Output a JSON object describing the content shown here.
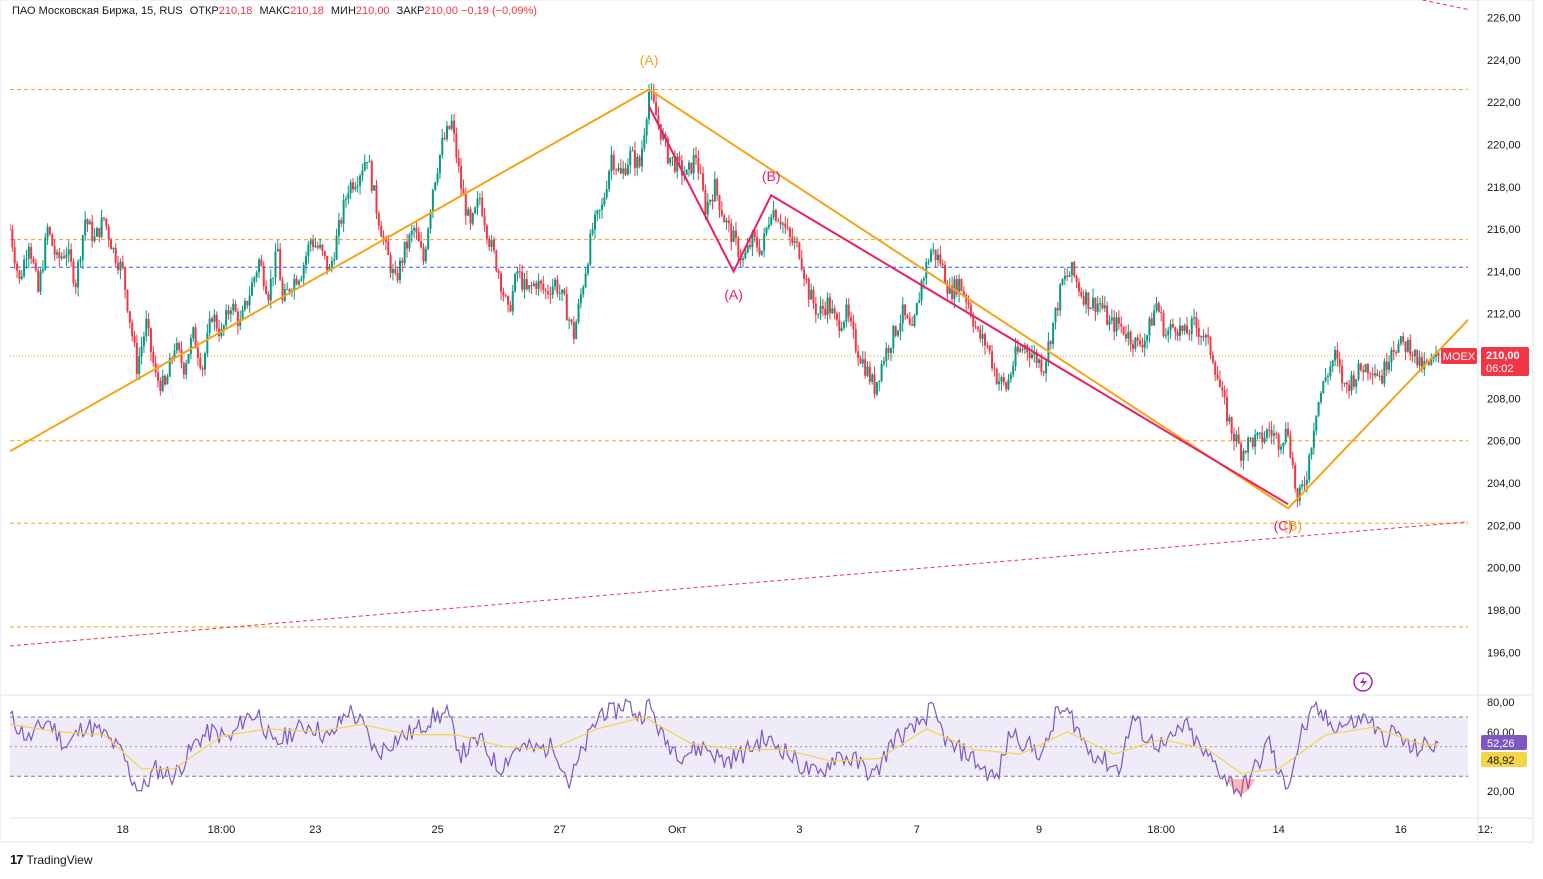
{
  "header": {
    "symbol": "ПАО Московская Биржа, 15, RUS",
    "open_label": "ОТКР",
    "open": "210,18",
    "high_label": "МАКС",
    "high": "210,18",
    "low_label": "МИН",
    "low": "210,00",
    "close_label": "ЗАКР",
    "close": "210,00",
    "change": "−0,19 (−0,09%)"
  },
  "footer": {
    "logo": "17",
    "brand": "TradingView"
  },
  "colors": {
    "up": "#089981",
    "down": "#f23645",
    "wave_orange": "#f5a31a",
    "wave_pink": "#e91e63",
    "trend_red": "#f23645",
    "rsi": "#7e57c2",
    "rsi_ma": "#f5d547"
  },
  "chart_data": [
    {
      "type": "candlestick",
      "title": "ПАО Московская Биржа, 15, RUS",
      "ylim": [
        194,
        227
      ],
      "y_ticks": [
        "226,00",
        "224,00",
        "222,00",
        "220,00",
        "218,00",
        "216,00",
        "214,00",
        "212,00",
        "210,00",
        "208,00",
        "206,00",
        "204,00",
        "202,00",
        "200,00",
        "198,00",
        "196,00"
      ],
      "y_tick_values": [
        226,
        224,
        222,
        220,
        218,
        216,
        214,
        212,
        210,
        208,
        206,
        204,
        202,
        200,
        198,
        196
      ],
      "x_ticks": [
        "18",
        "18:00",
        "23",
        "25",
        "27",
        "Окт",
        "3",
        "7",
        "9",
        "18:00",
        "14",
        "16",
        "12:"
      ],
      "price_path": [
        [
          0,
          216.0
        ],
        [
          2,
          213.5
        ],
        [
          4,
          215.5
        ],
        [
          6,
          213.0
        ],
        [
          8,
          216.0
        ],
        [
          10,
          214.5
        ],
        [
          12,
          215.0
        ],
        [
          14,
          213.5
        ],
        [
          16,
          216.5
        ],
        [
          18,
          215.5
        ],
        [
          20,
          216.5
        ],
        [
          22,
          215.0
        ],
        [
          24,
          214.0
        ],
        [
          26,
          211.0
        ],
        [
          27,
          209.5
        ],
        [
          29,
          211.5
        ],
        [
          31,
          209.0
        ],
        [
          33,
          208.5
        ],
        [
          35,
          210.5
        ],
        [
          37,
          209.5
        ],
        [
          39,
          211.0
        ],
        [
          41,
          209.5
        ],
        [
          43,
          212.0
        ],
        [
          45,
          211.0
        ],
        [
          47,
          212.5
        ],
        [
          49,
          211.5
        ],
        [
          51,
          213.0
        ],
        [
          53,
          214.5
        ],
        [
          55,
          213.0
        ],
        [
          57,
          215.0
        ],
        [
          58,
          212.5
        ],
        [
          60,
          213.5
        ],
        [
          62,
          214.0
        ],
        [
          64,
          215.5
        ],
        [
          66,
          215.0
        ],
        [
          68,
          214.0
        ],
        [
          70,
          216.0
        ],
        [
          72,
          218.0
        ],
        [
          74,
          218.5
        ],
        [
          76,
          219.5
        ],
        [
          78,
          217.0
        ],
        [
          80,
          215.0
        ],
        [
          82,
          213.5
        ],
        [
          84,
          215.0
        ],
        [
          86,
          216.0
        ],
        [
          88,
          214.5
        ],
        [
          90,
          218.0
        ],
        [
          92,
          220.0
        ],
        [
          94,
          221.0
        ],
        [
          96,
          218.0
        ],
        [
          98,
          216.0
        ],
        [
          100,
          217.5
        ],
        [
          102,
          215.5
        ],
        [
          104,
          214.0
        ],
        [
          106,
          212.0
        ],
        [
          108,
          214.0
        ],
        [
          110,
          213.0
        ],
        [
          112,
          213.5
        ],
        [
          114,
          213.0
        ],
        [
          116,
          213.5
        ],
        [
          118,
          212.5
        ],
        [
          120,
          211.0
        ],
        [
          122,
          213.5
        ],
        [
          124,
          216.0
        ],
        [
          126,
          217.0
        ],
        [
          128,
          219.5
        ],
        [
          130,
          218.5
        ],
        [
          132,
          219.5
        ],
        [
          134,
          219.0
        ],
        [
          136,
          222.5
        ],
        [
          138,
          221.0
        ],
        [
          140,
          219.5
        ],
        [
          142,
          219.0
        ],
        [
          144,
          218.5
        ],
        [
          146,
          219.5
        ],
        [
          148,
          217.0
        ],
        [
          150,
          218.0
        ],
        [
          152,
          216.5
        ],
        [
          154,
          215.5
        ],
        [
          156,
          214.5
        ],
        [
          158,
          215.5
        ],
        [
          160,
          215.0
        ],
        [
          162,
          217.0
        ],
        [
          164,
          216.5
        ],
        [
          166,
          215.5
        ],
        [
          168,
          215.0
        ],
        [
          170,
          213.0
        ],
        [
          172,
          212.0
        ],
        [
          174,
          212.5
        ],
        [
          176,
          211.5
        ],
        [
          178,
          212.0
        ],
        [
          180,
          210.5
        ],
        [
          182,
          209.5
        ],
        [
          184,
          208.5
        ],
        [
          186,
          210.0
        ],
        [
          188,
          211.0
        ],
        [
          190,
          212.0
        ],
        [
          192,
          211.0
        ],
        [
          194,
          213.5
        ],
        [
          196,
          215.0
        ],
        [
          198,
          214.5
        ],
        [
          200,
          213.0
        ],
        [
          202,
          213.5
        ],
        [
          204,
          212.5
        ],
        [
          206,
          211.0
        ],
        [
          208,
          210.5
        ],
        [
          210,
          209.0
        ],
        [
          212,
          208.5
        ],
        [
          214,
          210.0
        ],
        [
          216,
          210.5
        ],
        [
          218,
          210.0
        ],
        [
          220,
          209.5
        ],
        [
          222,
          211.5
        ],
        [
          224,
          213.5
        ],
        [
          226,
          214.0
        ],
        [
          228,
          213.0
        ],
        [
          230,
          212.5
        ],
        [
          232,
          212.5
        ],
        [
          234,
          211.5
        ],
        [
          236,
          211.5
        ],
        [
          238,
          211.0
        ],
        [
          240,
          210.5
        ],
        [
          242,
          211.0
        ],
        [
          244,
          212.5
        ],
        [
          246,
          211.0
        ],
        [
          248,
          211.5
        ],
        [
          250,
          211.0
        ],
        [
          252,
          211.5
        ],
        [
          254,
          211.0
        ],
        [
          256,
          210.0
        ],
        [
          258,
          208.0
        ],
        [
          260,
          206.5
        ],
        [
          262,
          205.5
        ],
        [
          264,
          206.0
        ],
        [
          266,
          206.0
        ],
        [
          268,
          206.5
        ],
        [
          270,
          206.0
        ],
        [
          272,
          206.5
        ],
        [
          274,
          203.0
        ],
        [
          276,
          204.5
        ],
        [
          278,
          207.5
        ],
        [
          280,
          209.0
        ],
        [
          282,
          210.0
        ],
        [
          284,
          208.5
        ],
        [
          286,
          209.0
        ],
        [
          288,
          209.5
        ],
        [
          290,
          209.5
        ],
        [
          292,
          209.0
        ],
        [
          294,
          210.5
        ],
        [
          296,
          210.5
        ],
        [
          298,
          210.5
        ],
        [
          300,
          209.5
        ],
        [
          302,
          209.5
        ],
        [
          304,
          210.0
        ]
      ],
      "horizontal_levels": [
        {
          "price": 222.6,
          "style": "dashed",
          "color": "orange"
        },
        {
          "price": 215.5,
          "style": "dashed",
          "color": "orange"
        },
        {
          "price": 214.2,
          "style": "dashed",
          "color": "blue"
        },
        {
          "price": 210.0,
          "style": "dotted",
          "color": "orange"
        },
        {
          "price": 206.0,
          "style": "dashed",
          "color": "orange"
        },
        {
          "price": 202.1,
          "style": "dashed",
          "color": "orange"
        },
        {
          "price": 197.2,
          "style": "dashed",
          "color": "orange"
        }
      ],
      "trend_lines": [
        {
          "from": [
            0,
            196.3
          ],
          "to": [
            312,
            202.2
          ],
          "style": "dashed",
          "color": "red"
        },
        {
          "from": [
            286,
            227.5
          ],
          "to": [
            312,
            226.3
          ],
          "style": "dashed",
          "color": "red"
        }
      ],
      "waves": [
        {
          "name": "orange",
          "points": [
            [
              0,
              205.5
            ],
            [
              136,
              222.6
            ],
            [
              272,
              202.8
            ],
            [
              312,
              212.1
            ]
          ]
        },
        {
          "name": "pink",
          "points": [
            [
              136,
              221.8
            ],
            [
              154,
              214.0
            ],
            [
              162,
              217.6
            ],
            [
              272,
              203.0
            ]
          ]
        }
      ],
      "wave_labels": [
        {
          "text": "(A)",
          "x": 136,
          "price": 224.0,
          "color": "orange"
        },
        {
          "text": "(A)",
          "x": 154,
          "price": 212.9,
          "color": "pink"
        },
        {
          "text": "(B)",
          "x": 162,
          "price": 218.5,
          "color": "pink"
        },
        {
          "text": "(C)",
          "x": 271,
          "price": 202.0,
          "color": "pink"
        },
        {
          "text": "(B)",
          "x": 273,
          "price": 202.0,
          "color": "orange"
        }
      ],
      "last_price": {
        "symbol": "MOEX",
        "price": 210.0,
        "price_label": "210,00",
        "timer": "06:02"
      }
    },
    {
      "type": "line",
      "name": "RSI",
      "ylim": [
        10,
        85
      ],
      "y_ticks": [
        "80,00",
        "60,00",
        "20,00"
      ],
      "y_tick_values": [
        80,
        60,
        20
      ],
      "band": [
        70,
        30
      ],
      "midline": 50,
      "rsi_path": [
        [
          0,
          70
        ],
        [
          4,
          55
        ],
        [
          8,
          68
        ],
        [
          12,
          50
        ],
        [
          16,
          65
        ],
        [
          20,
          58
        ],
        [
          24,
          45
        ],
        [
          26,
          28
        ],
        [
          28,
          20
        ],
        [
          31,
          35
        ],
        [
          35,
          30
        ],
        [
          40,
          55
        ],
        [
          43,
          60
        ],
        [
          47,
          55
        ],
        [
          50,
          70
        ],
        [
          53,
          72
        ],
        [
          56,
          50
        ],
        [
          60,
          60
        ],
        [
          64,
          65
        ],
        [
          68,
          55
        ],
        [
          72,
          75
        ],
        [
          75,
          65
        ],
        [
          78,
          45
        ],
        [
          82,
          55
        ],
        [
          86,
          60
        ],
        [
          90,
          70
        ],
        [
          93,
          72
        ],
        [
          96,
          45
        ],
        [
          100,
          55
        ],
        [
          104,
          35
        ],
        [
          108,
          50
        ],
        [
          112,
          48
        ],
        [
          116,
          50
        ],
        [
          119,
          25
        ],
        [
          123,
          55
        ],
        [
          126,
          75
        ],
        [
          128,
          72
        ],
        [
          131,
          80
        ],
        [
          134,
          70
        ],
        [
          136,
          79
        ],
        [
          139,
          55
        ],
        [
          143,
          45
        ],
        [
          148,
          50
        ],
        [
          152,
          40
        ],
        [
          156,
          45
        ],
        [
          160,
          55
        ],
        [
          164,
          50
        ],
        [
          168,
          38
        ],
        [
          172,
          30
        ],
        [
          176,
          45
        ],
        [
          180,
          40
        ],
        [
          184,
          30
        ],
        [
          188,
          55
        ],
        [
          192,
          60
        ],
        [
          196,
          75
        ],
        [
          200,
          50
        ],
        [
          204,
          45
        ],
        [
          207,
          35
        ],
        [
          210,
          28
        ],
        [
          213,
          60
        ],
        [
          217,
          50
        ],
        [
          220,
          45
        ],
        [
          223,
          75
        ],
        [
          226,
          70
        ],
        [
          229,
          50
        ],
        [
          233,
          40
        ],
        [
          236,
          35
        ],
        [
          239,
          70
        ],
        [
          242,
          55
        ],
        [
          246,
          50
        ],
        [
          250,
          65
        ],
        [
          254,
          45
        ],
        [
          256,
          40
        ],
        [
          259,
          28
        ],
        [
          262,
          20
        ],
        [
          266,
          40
        ],
        [
          268,
          55
        ],
        [
          270,
          30
        ],
        [
          272,
          25
        ],
        [
          275,
          60
        ],
        [
          278,
          75
        ],
        [
          281,
          65
        ],
        [
          285,
          65
        ],
        [
          289,
          70
        ],
        [
          292,
          55
        ],
        [
          295,
          60
        ],
        [
          298,
          48
        ],
        [
          301,
          50
        ],
        [
          304,
          52
        ]
      ],
      "rsi_ma_path": [
        [
          0,
          65
        ],
        [
          10,
          60
        ],
        [
          20,
          58
        ],
        [
          28,
          35
        ],
        [
          35,
          35
        ],
        [
          45,
          57
        ],
        [
          55,
          62
        ],
        [
          65,
          60
        ],
        [
          75,
          65
        ],
        [
          85,
          58
        ],
        [
          95,
          58
        ],
        [
          105,
          50
        ],
        [
          115,
          48
        ],
        [
          125,
          62
        ],
        [
          135,
          70
        ],
        [
          145,
          52
        ],
        [
          155,
          48
        ],
        [
          165,
          48
        ],
        [
          175,
          40
        ],
        [
          185,
          42
        ],
        [
          195,
          62
        ],
        [
          205,
          48
        ],
        [
          215,
          45
        ],
        [
          225,
          60
        ],
        [
          235,
          45
        ],
        [
          245,
          55
        ],
        [
          255,
          48
        ],
        [
          262,
          32
        ],
        [
          270,
          35
        ],
        [
          280,
          58
        ],
        [
          290,
          63
        ],
        [
          300,
          52
        ],
        [
          304,
          51
        ]
      ],
      "last_values": [
        {
          "label": "52,26",
          "color": "purple"
        },
        {
          "label": "48,92",
          "color": "yellow"
        }
      ]
    }
  ]
}
